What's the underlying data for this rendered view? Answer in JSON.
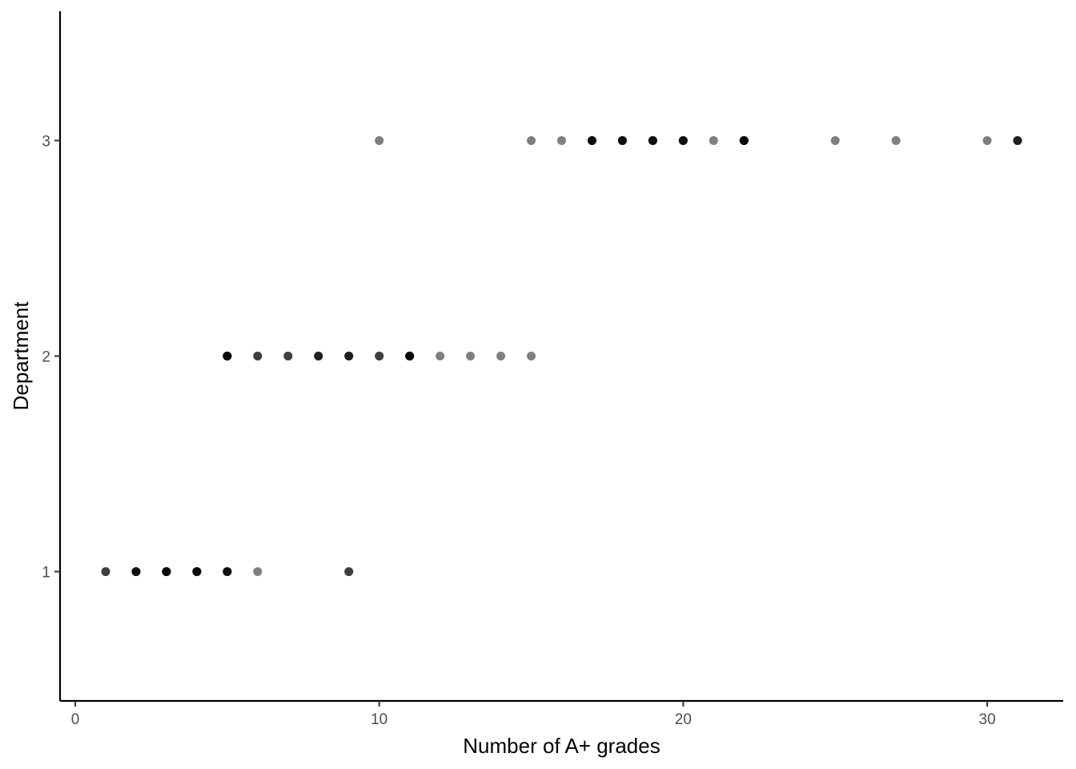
{
  "chart_data": {
    "type": "scatter",
    "title": "",
    "xlabel": "Number of A+ grades",
    "ylabel": "Department",
    "xlim": [
      -0.5,
      32.5
    ],
    "ylim": [
      0.4,
      3.6
    ],
    "x_ticks": [
      0,
      10,
      20,
      30
    ],
    "y_ticks": [
      1,
      2,
      3
    ],
    "grid": false,
    "point_color": "#000000",
    "point_alpha": 0.5,
    "series": [
      {
        "points": [
          {
            "x": 1,
            "y": 1,
            "n": 2
          },
          {
            "x": 2,
            "y": 1,
            "n": 4
          },
          {
            "x": 3,
            "y": 1,
            "n": 5
          },
          {
            "x": 4,
            "y": 1,
            "n": 5
          },
          {
            "x": 5,
            "y": 1,
            "n": 4
          },
          {
            "x": 6,
            "y": 1,
            "n": 1
          },
          {
            "x": 9,
            "y": 1,
            "n": 2
          },
          {
            "x": 5,
            "y": 2,
            "n": 5
          },
          {
            "x": 6,
            "y": 2,
            "n": 2
          },
          {
            "x": 7,
            "y": 2,
            "n": 2
          },
          {
            "x": 8,
            "y": 2,
            "n": 3
          },
          {
            "x": 9,
            "y": 2,
            "n": 3
          },
          {
            "x": 10,
            "y": 2,
            "n": 2
          },
          {
            "x": 11,
            "y": 2,
            "n": 5
          },
          {
            "x": 12,
            "y": 2,
            "n": 1
          },
          {
            "x": 13,
            "y": 2,
            "n": 1
          },
          {
            "x": 14,
            "y": 2,
            "n": 1
          },
          {
            "x": 15,
            "y": 2,
            "n": 1
          },
          {
            "x": 10,
            "y": 3,
            "n": 1
          },
          {
            "x": 15,
            "y": 3,
            "n": 1
          },
          {
            "x": 16,
            "y": 3,
            "n": 1
          },
          {
            "x": 17,
            "y": 3,
            "n": 4
          },
          {
            "x": 18,
            "y": 3,
            "n": 4
          },
          {
            "x": 19,
            "y": 3,
            "n": 4
          },
          {
            "x": 20,
            "y": 3,
            "n": 4
          },
          {
            "x": 21,
            "y": 3,
            "n": 1
          },
          {
            "x": 22,
            "y": 3,
            "n": 5
          },
          {
            "x": 25,
            "y": 3,
            "n": 1
          },
          {
            "x": 27,
            "y": 3,
            "n": 1
          },
          {
            "x": 30,
            "y": 3,
            "n": 1
          },
          {
            "x": 31,
            "y": 3,
            "n": 3
          }
        ]
      }
    ]
  }
}
